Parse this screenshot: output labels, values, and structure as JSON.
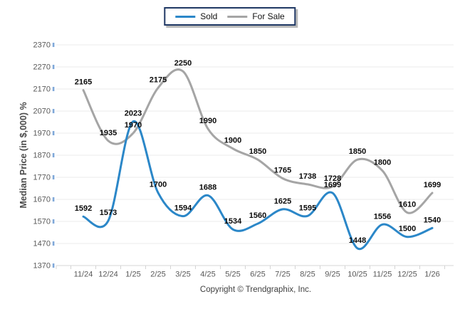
{
  "legend": {
    "items": [
      {
        "label": "Sold",
        "color": "#2B87C8"
      },
      {
        "label": "For Sale",
        "color": "#A5A5A5"
      }
    ]
  },
  "y_axis": {
    "title": "Median Price (in $,000) %",
    "min": 1370,
    "max": 2370,
    "step": 100,
    "tick_labels": [
      "1370",
      "1470",
      "1570",
      "1670",
      "1770",
      "1870",
      "1970",
      "2070",
      "2170",
      "2270",
      "2370"
    ]
  },
  "x_axis": {
    "categories": [
      "11/24",
      "12/24",
      "1/25",
      "2/25",
      "3/25",
      "4/25",
      "5/25",
      "6/25",
      "7/25",
      "8/25",
      "9/25",
      "10/25",
      "11/25",
      "12/25",
      "1/26"
    ]
  },
  "footer": {
    "copyright": "Copyright © Trendgraphix, Inc."
  },
  "colors": {
    "sold_line": "#2B87C8",
    "for_sale_line": "#A5A5A5",
    "gridline": "#EBEBEB",
    "axis_line": "#D4D4D4",
    "y_tick_mark": "#7FA8D9",
    "tick_text": "#595959",
    "data_label_text": "#0A0A0A",
    "legend_border": "#1F3864"
  },
  "chart_data": {
    "type": "line",
    "title": "",
    "xlabel": "",
    "ylabel": "Median Price (in $,000) %",
    "categories": [
      "11/24",
      "12/24",
      "1/25",
      "2/25",
      "3/25",
      "4/25",
      "5/25",
      "6/25",
      "7/25",
      "8/25",
      "9/25",
      "10/25",
      "11/25",
      "12/25",
      "1/26"
    ],
    "series": [
      {
        "name": "Sold",
        "color": "#2B87C8",
        "values": [
          1592,
          1573,
          2023,
          1700,
          1594,
          1688,
          1534,
          1560,
          1625,
          1595,
          1699,
          1448,
          1556,
          1500,
          1540
        ]
      },
      {
        "name": "For Sale",
        "color": "#A5A5A5",
        "values": [
          2165,
          1935,
          1970,
          2175,
          2250,
          1990,
          1900,
          1850,
          1765,
          1738,
          1728,
          1850,
          1800,
          1610,
          1699
        ]
      }
    ],
    "ylim": [
      1370,
      2370
    ],
    "ytick_step": 100,
    "grid": true,
    "smooth": true,
    "data_labels": true,
    "legend_position": "top-center"
  }
}
